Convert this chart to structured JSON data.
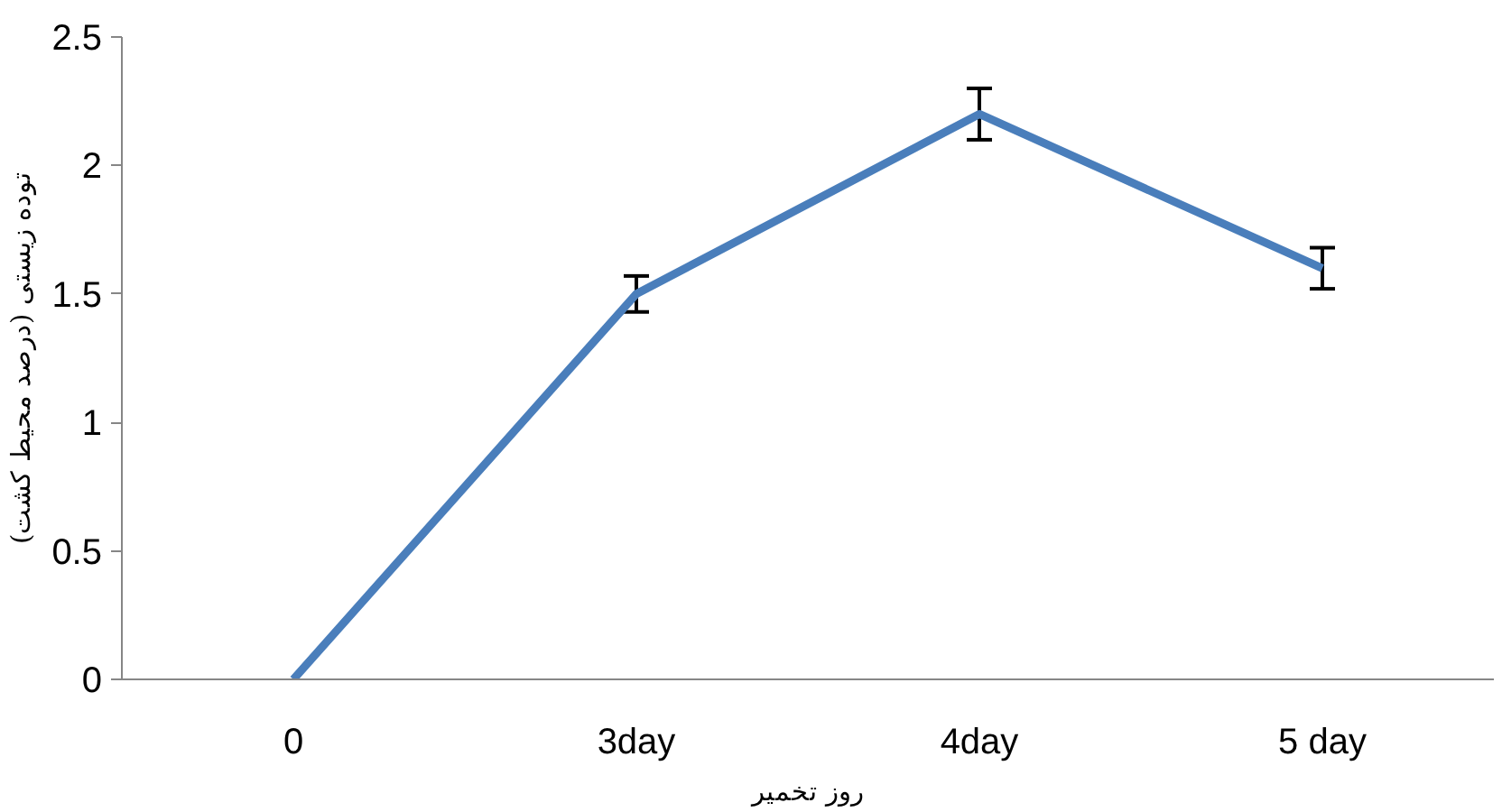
{
  "chart_data": {
    "type": "line",
    "xlabel": "روز تخمیر",
    "ylabel": "توده زیستی (درصد محیط کشت)",
    "categories": [
      "0",
      "3day",
      "4day",
      "5 day"
    ],
    "series": [
      {
        "color": "#4a7ebb",
        "values": [
          0,
          1.5,
          2.2,
          1.6
        ],
        "errors": [
          null,
          0.07,
          0.1,
          0.08
        ]
      }
    ],
    "ylim": [
      0,
      2.5
    ],
    "yticks": [
      0,
      0.5,
      1,
      1.5,
      2,
      2.5
    ],
    "grid": false,
    "marker": "none",
    "line_style": "solid"
  }
}
